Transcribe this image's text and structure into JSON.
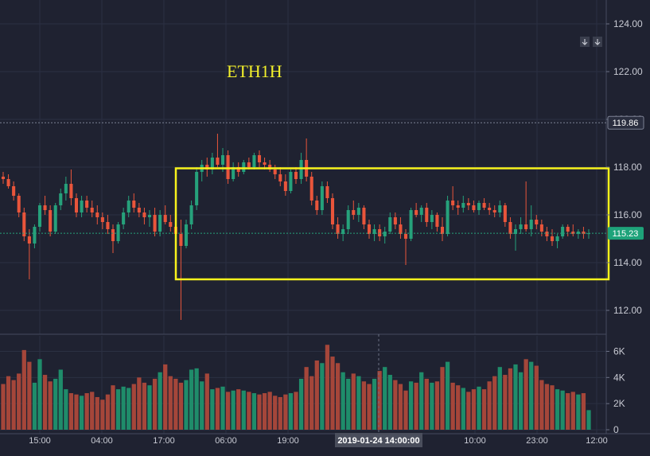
{
  "overlay_title": "ETH1H",
  "crosshair_time_label": "2019-01-24 14:00:00",
  "colors": {
    "background": "#1f2231",
    "grid": "#2b3042",
    "up": "#26a17b",
    "down": "#e9553b",
    "up_volume": "#1f8c6a",
    "down_volume": "#a5463a",
    "highlight_box": "#f7f21c",
    "title_text": "#f2ef2b",
    "last_price_badge": "#1ea37a",
    "prev_price_badge": "#2a2e3f"
  },
  "chart_data": {
    "type": "candlestick",
    "title": "ETH1H",
    "price_axis": {
      "ticks": [
        "124.00",
        "122.00",
        "120.00",
        "118.00",
        "116.00",
        "114.00",
        "112.00"
      ],
      "ylim": [
        111,
        125
      ]
    },
    "volume_axis": {
      "ticks": [
        "6K",
        "4K",
        "2K",
        "0"
      ],
      "ylim": [
        0,
        6700
      ]
    },
    "time_axis": {
      "tick_labels": [
        "15:00",
        "04:00",
        "17:00",
        "06:00",
        "19:00",
        "10:00",
        "23:00",
        "12:00"
      ],
      "crosshair_label": "2019-01-24 14:00:00"
    },
    "price_labels": {
      "last": "115.23",
      "reference": "119.86"
    },
    "highlight_box": {
      "price_range": [
        113.3,
        117.95
      ],
      "note": "yellow rectangle around consolidation range"
    },
    "candles": [
      [
        117.6,
        117.8,
        117.3,
        117.5,
        3500
      ],
      [
        117.5,
        117.7,
        117.1,
        117.2,
        4100
      ],
      [
        117.2,
        117.4,
        116.6,
        116.8,
        3800
      ],
      [
        116.8,
        116.9,
        115.9,
        116.1,
        4300
      ],
      [
        116.1,
        116.3,
        114.9,
        115.1,
        6100
      ],
      [
        115.1,
        115.4,
        113.3,
        114.8,
        5200
      ],
      [
        114.8,
        115.6,
        114.6,
        115.5,
        3600
      ],
      [
        115.5,
        116.5,
        115.3,
        116.4,
        5400
      ],
      [
        116.4,
        116.8,
        116.0,
        116.2,
        4200
      ],
      [
        116.2,
        116.4,
        115.1,
        115.3,
        3700
      ],
      [
        115.3,
        116.5,
        115.2,
        116.4,
        3900
      ],
      [
        116.4,
        117.1,
        116.2,
        116.9,
        4600
      ],
      [
        116.9,
        117.6,
        116.6,
        117.3,
        3100
      ],
      [
        117.3,
        117.9,
        116.4,
        116.7,
        2800
      ],
      [
        116.7,
        116.9,
        115.9,
        116.1,
        2700
      ],
      [
        116.1,
        116.8,
        115.9,
        116.6,
        2600
      ],
      [
        116.6,
        116.8,
        116.1,
        116.3,
        2800
      ],
      [
        116.3,
        116.6,
        115.9,
        116.1,
        2900
      ],
      [
        116.1,
        116.4,
        115.6,
        115.9,
        2500
      ],
      [
        115.9,
        116.1,
        115.4,
        115.7,
        2300
      ],
      [
        115.7,
        116.0,
        115.2,
        115.4,
        2700
      ],
      [
        115.4,
        115.6,
        114.4,
        114.9,
        3400
      ],
      [
        114.9,
        115.7,
        114.8,
        115.6,
        3100
      ],
      [
        115.6,
        116.3,
        115.4,
        116.1,
        3300
      ],
      [
        116.1,
        116.8,
        115.9,
        116.6,
        3200
      ],
      [
        116.6,
        116.9,
        116.1,
        116.3,
        3500
      ],
      [
        116.3,
        116.5,
        115.9,
        116.1,
        4000
      ],
      [
        116.1,
        116.3,
        115.6,
        115.9,
        3600
      ],
      [
        115.9,
        116.2,
        115.5,
        116.0,
        3400
      ],
      [
        116.0,
        116.3,
        115.1,
        115.3,
        3900
      ],
      [
        115.3,
        116.2,
        115.1,
        116.0,
        4400
      ],
      [
        116.0,
        116.4,
        115.6,
        115.7,
        5000
      ],
      [
        115.7,
        116.0,
        115.3,
        115.5,
        4100
      ],
      [
        115.5,
        116.0,
        114.8,
        115.2,
        3900
      ],
      [
        115.2,
        115.8,
        111.6,
        114.7,
        3600
      ],
      [
        114.7,
        115.8,
        114.6,
        115.6,
        3800
      ],
      [
        115.6,
        116.6,
        115.4,
        116.4,
        4600
      ],
      [
        116.4,
        118.0,
        116.2,
        117.8,
        4700
      ],
      [
        117.8,
        118.3,
        117.4,
        118.1,
        3700
      ],
      [
        118.1,
        118.4,
        117.6,
        117.9,
        4300
      ],
      [
        117.9,
        118.6,
        117.7,
        118.4,
        3100
      ],
      [
        118.4,
        119.4,
        118.0,
        118.1,
        3200
      ],
      [
        118.1,
        118.8,
        117.8,
        118.5,
        3300
      ],
      [
        118.5,
        118.7,
        117.3,
        117.5,
        2900
      ],
      [
        117.5,
        118.2,
        117.4,
        118.0,
        3000
      ],
      [
        118.0,
        118.2,
        117.6,
        117.8,
        3100
      ],
      [
        117.8,
        118.3,
        117.7,
        118.2,
        3000
      ],
      [
        118.2,
        118.4,
        117.9,
        118.0,
        2900
      ],
      [
        118.0,
        118.6,
        117.9,
        118.5,
        2800
      ],
      [
        118.5,
        118.7,
        118.0,
        118.2,
        2700
      ],
      [
        118.2,
        118.4,
        117.9,
        118.1,
        2800
      ],
      [
        118.1,
        118.3,
        117.8,
        117.9,
        2900
      ],
      [
        117.9,
        118.1,
        117.5,
        117.7,
        2600
      ],
      [
        117.7,
        118.0,
        117.2,
        117.4,
        2500
      ],
      [
        117.4,
        117.7,
        116.8,
        117.0,
        2700
      ],
      [
        117.0,
        117.9,
        116.9,
        117.8,
        2800
      ],
      [
        117.8,
        118.0,
        117.3,
        117.5,
        2900
      ],
      [
        117.5,
        118.6,
        117.3,
        118.3,
        3900
      ],
      [
        118.3,
        119.2,
        117.4,
        117.6,
        4800
      ],
      [
        117.6,
        117.8,
        116.4,
        116.6,
        4100
      ],
      [
        116.6,
        116.8,
        116.0,
        116.2,
        5300
      ],
      [
        116.2,
        117.4,
        116.0,
        117.2,
        5100
      ],
      [
        117.2,
        117.4,
        116.5,
        116.7,
        6500
      ],
      [
        116.7,
        116.9,
        115.4,
        115.6,
        5600
      ],
      [
        115.6,
        115.9,
        115.0,
        115.2,
        5100
      ],
      [
        115.2,
        115.6,
        114.9,
        115.4,
        4400
      ],
      [
        115.4,
        116.4,
        115.2,
        116.2,
        3900
      ],
      [
        116.2,
        116.6,
        115.8,
        116.0,
        4300
      ],
      [
        116.0,
        116.5,
        115.7,
        116.3,
        4100
      ],
      [
        116.3,
        116.4,
        115.4,
        115.6,
        3700
      ],
      [
        115.6,
        115.8,
        115.0,
        115.2,
        3500
      ],
      [
        115.2,
        115.6,
        114.9,
        115.4,
        3900
      ],
      [
        115.4,
        115.6,
        114.9,
        115.1,
        4500
      ],
      [
        115.1,
        115.5,
        114.8,
        115.3,
        4800
      ],
      [
        115.3,
        116.1,
        115.2,
        115.9,
        4200
      ],
      [
        115.9,
        116.1,
        115.4,
        115.6,
        3800
      ],
      [
        115.6,
        115.9,
        115.0,
        115.2,
        3500
      ],
      [
        115.2,
        115.4,
        113.9,
        115.0,
        3000
      ],
      [
        115.0,
        116.3,
        114.9,
        116.2,
        3700
      ],
      [
        116.2,
        116.5,
        115.9,
        116.0,
        3600
      ],
      [
        116.0,
        116.4,
        115.7,
        116.3,
        4400
      ],
      [
        116.3,
        116.5,
        115.5,
        115.7,
        3900
      ],
      [
        115.7,
        116.2,
        115.4,
        116.0,
        3600
      ],
      [
        116.0,
        116.1,
        115.3,
        115.5,
        3700
      ],
      [
        115.5,
        115.9,
        114.9,
        115.2,
        4800
      ],
      [
        115.2,
        116.8,
        115.1,
        116.6,
        5200
      ],
      [
        116.6,
        117.2,
        116.2,
        116.4,
        3600
      ],
      [
        116.4,
        116.6,
        116.0,
        116.3,
        3400
      ],
      [
        116.3,
        116.8,
        116.1,
        116.5,
        3200
      ],
      [
        116.5,
        116.7,
        116.2,
        116.4,
        2900
      ],
      [
        116.4,
        116.6,
        116.1,
        116.2,
        3100
      ],
      [
        116.2,
        116.6,
        116.0,
        116.5,
        3300
      ],
      [
        116.5,
        116.7,
        116.2,
        116.3,
        3100
      ],
      [
        116.3,
        116.5,
        116.0,
        116.2,
        3700
      ],
      [
        116.2,
        116.4,
        115.9,
        116.1,
        4100
      ],
      [
        116.1,
        116.6,
        115.9,
        116.4,
        4800
      ],
      [
        116.4,
        116.5,
        115.5,
        115.7,
        4200
      ],
      [
        115.7,
        115.9,
        115.0,
        115.2,
        4700
      ],
      [
        115.2,
        115.6,
        114.5,
        115.4,
        5000
      ],
      [
        115.4,
        115.9,
        115.2,
        115.6,
        4400
      ],
      [
        115.6,
        117.4,
        115.3,
        115.4,
        5400
      ],
      [
        115.4,
        116.4,
        115.1,
        115.8,
        5200
      ],
      [
        115.8,
        116.0,
        115.4,
        115.6,
        4900
      ],
      [
        115.6,
        115.8,
        115.1,
        115.3,
        3800
      ],
      [
        115.3,
        115.5,
        114.9,
        115.1,
        3500
      ],
      [
        115.1,
        115.4,
        114.7,
        114.9,
        3400
      ],
      [
        114.9,
        115.2,
        114.6,
        115.1,
        3100
      ],
      [
        115.1,
        115.6,
        115.0,
        115.5,
        3000
      ],
      [
        115.5,
        115.6,
        115.1,
        115.3,
        2800
      ],
      [
        115.3,
        115.6,
        115.1,
        115.2,
        2900
      ],
      [
        115.2,
        115.4,
        115.0,
        115.3,
        2700
      ],
      [
        115.3,
        115.5,
        115.0,
        115.2,
        2800
      ],
      [
        115.2,
        115.4,
        115.0,
        115.23,
        1500
      ]
    ]
  }
}
